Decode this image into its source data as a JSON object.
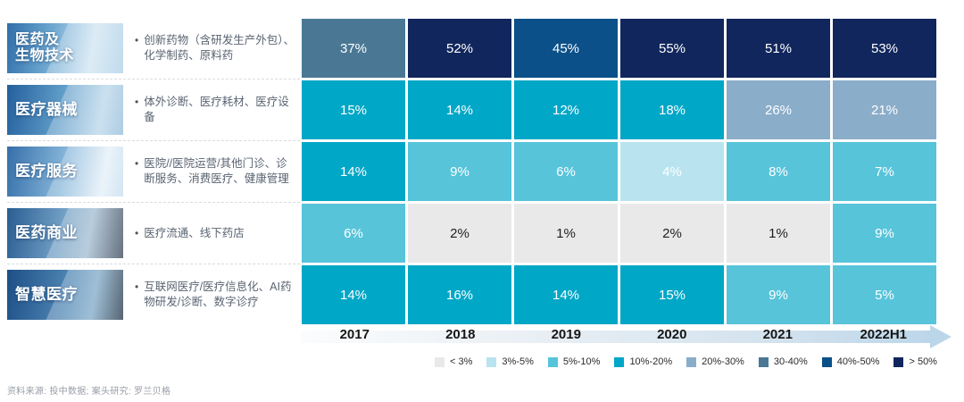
{
  "sidebar": {
    "categories": [
      {
        "name": "医药及生物技术",
        "label": "医药及\n生物技术",
        "desc": "创新药物（含研发生产外包）、化学制药、原料药"
      },
      {
        "name": "医疗器械",
        "label": "医疗器械",
        "desc": "体外诊断、医疗耗材、医疗设备"
      },
      {
        "name": "医疗服务",
        "label": "医疗服务",
        "desc": "医院//医院运营/其他门诊、诊断服务、消费医疗、健康管理"
      },
      {
        "name": "医药商业",
        "label": "医药商业",
        "desc": "医疗流通、线下药店"
      },
      {
        "name": "智慧医疗",
        "label": "智慧医疗",
        "desc": "互联网医疗/医疗信息化、AI药物研发/诊断、数字诊疗"
      }
    ]
  },
  "chart_data": {
    "type": "heatmap",
    "columns": [
      "2017",
      "2018",
      "2019",
      "2020",
      "2021",
      "2022H1"
    ],
    "rows": [
      "医药及生物技术",
      "医疗器械",
      "医疗服务",
      "医药商业",
      "智慧医疗"
    ],
    "values": [
      [
        37,
        52,
        45,
        55,
        51,
        53
      ],
      [
        15,
        14,
        12,
        18,
        26,
        21
      ],
      [
        14,
        9,
        6,
        4,
        8,
        7
      ],
      [
        6,
        2,
        1,
        2,
        1,
        9
      ],
      [
        14,
        16,
        14,
        15,
        9,
        5
      ]
    ],
    "value_suffix": "%",
    "legend_position": "bottom",
    "legend": [
      {
        "label": "< 3%",
        "color": "#e9e9e9",
        "upper": 3,
        "text_color": "#1f1f1f"
      },
      {
        "label": "3%-5%",
        "color": "#b9e4ef",
        "upper": 5,
        "text_color": "#ffffff"
      },
      {
        "label": "5%-10%",
        "color": "#57c4da",
        "upper": 10,
        "text_color": "#ffffff"
      },
      {
        "label": "10%-20%",
        "color": "#00a7c7",
        "upper": 20,
        "text_color": "#ffffff"
      },
      {
        "label": "20%-30%",
        "color": "#8aadc9",
        "upper": 30,
        "text_color": "#ffffff"
      },
      {
        "label": "30-40%",
        "color": "#4a7894",
        "upper": 40,
        "text_color": "#ffffff"
      },
      {
        "label": "40%-50%",
        "color": "#0b5088",
        "upper": 50,
        "text_color": "#ffffff"
      },
      {
        "label": "> 50%",
        "color": "#11265c",
        "upper": 1000,
        "text_color": "#ffffff"
      }
    ]
  },
  "footer": {
    "source": "资料来源: 投中数据; 案头研究: 罗兰贝格"
  }
}
